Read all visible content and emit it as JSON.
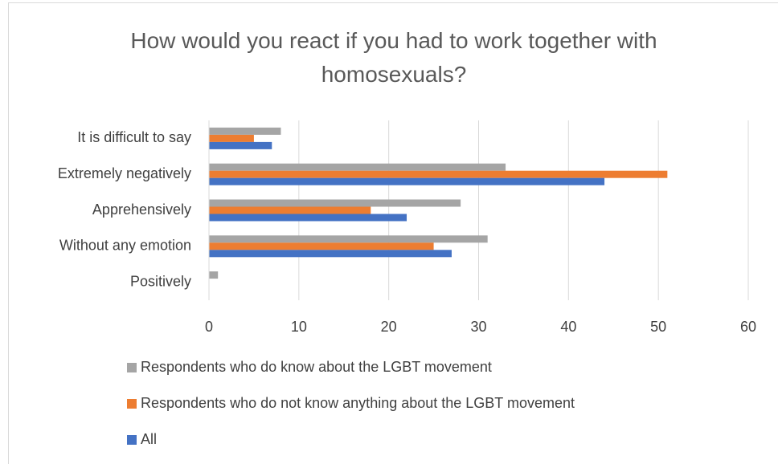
{
  "chart_data": {
    "type": "hbar",
    "title": "How would you react if you had to work together with homosexuals?",
    "categories": [
      "It is difficult to say",
      "Extremely negatively",
      "Apprehensively",
      "Without any emotion",
      "Positively"
    ],
    "series": [
      {
        "name": "Respondents who do know about the LGBT movement",
        "color": "#a5a5a5",
        "values": [
          8,
          33,
          28,
          31,
          1
        ]
      },
      {
        "name": "Respondents who do not know anything about the LGBT movement",
        "color": "#ed7d31",
        "values": [
          5,
          51,
          18,
          25,
          0
        ]
      },
      {
        "name": "All",
        "color": "#4472c4",
        "values": [
          7,
          44,
          22,
          27,
          0
        ]
      }
    ],
    "xlim": [
      0,
      60
    ],
    "xticks": [
      0,
      10,
      20,
      30,
      40,
      50,
      60
    ],
    "grid": true,
    "legend": "bottom"
  }
}
